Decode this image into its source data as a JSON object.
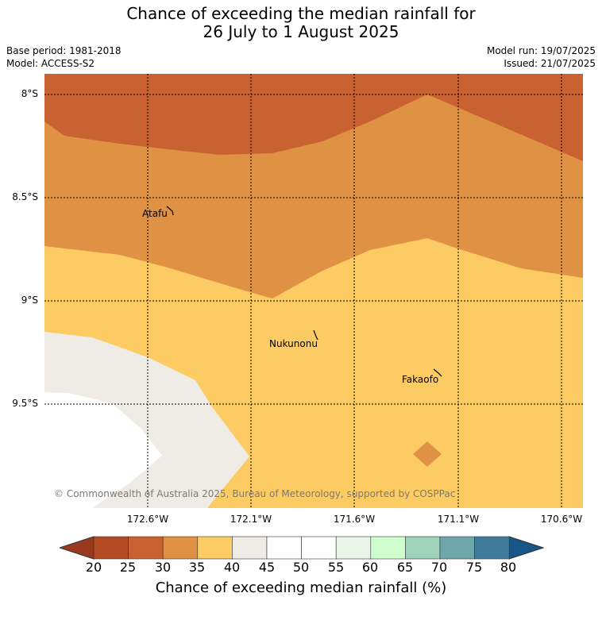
{
  "header": {
    "title_line1": "Chance of exceeding the median rainfall for",
    "title_line2": "26 July to 1 August 2025",
    "base_period": "Base period: 1981-2018",
    "model": "Model: ACCESS-S2",
    "model_run": "Model run: 19/07/2025",
    "issued": "Issued: 21/07/2025"
  },
  "map": {
    "latitude_labels": [
      "8°S",
      "8.5°S",
      "9°S",
      "9.5°S"
    ],
    "longitude_labels": [
      "172.6°W",
      "172.1°W",
      "171.6°W",
      "171.1°W",
      "170.6°W"
    ],
    "places": {
      "atafu": "Atafu",
      "nukunonu": "Nukunonu",
      "fakaofo": "Fakaofo"
    },
    "copyright": "© Commonwealth of Australia 2025, Bureau of Meteorology, supported by COSPPac",
    "colors": {
      "band_25_30": "#c96231",
      "band_30_35": "#df9144",
      "band_35_40": "#fdcb64",
      "band_40_45": "#efebe5",
      "band_45_50": "#ffffff"
    }
  },
  "colorbar": {
    "ticks": [
      "20",
      "25",
      "30",
      "35",
      "40",
      "45",
      "50",
      "55",
      "60",
      "65",
      "70",
      "75",
      "80"
    ],
    "colors": [
      "#b24a24",
      "#c96231",
      "#df9144",
      "#fdcb64",
      "#efebe5",
      "#ffffff",
      "#ffffff",
      "#e9f5e6",
      "#cdfecc",
      "#9ed2b9",
      "#6ea6aa",
      "#3f7c9b"
    ],
    "under_color": "#993a1f",
    "over_color": "#185687",
    "label": "Chance of exceeding median rainfall (%)"
  }
}
